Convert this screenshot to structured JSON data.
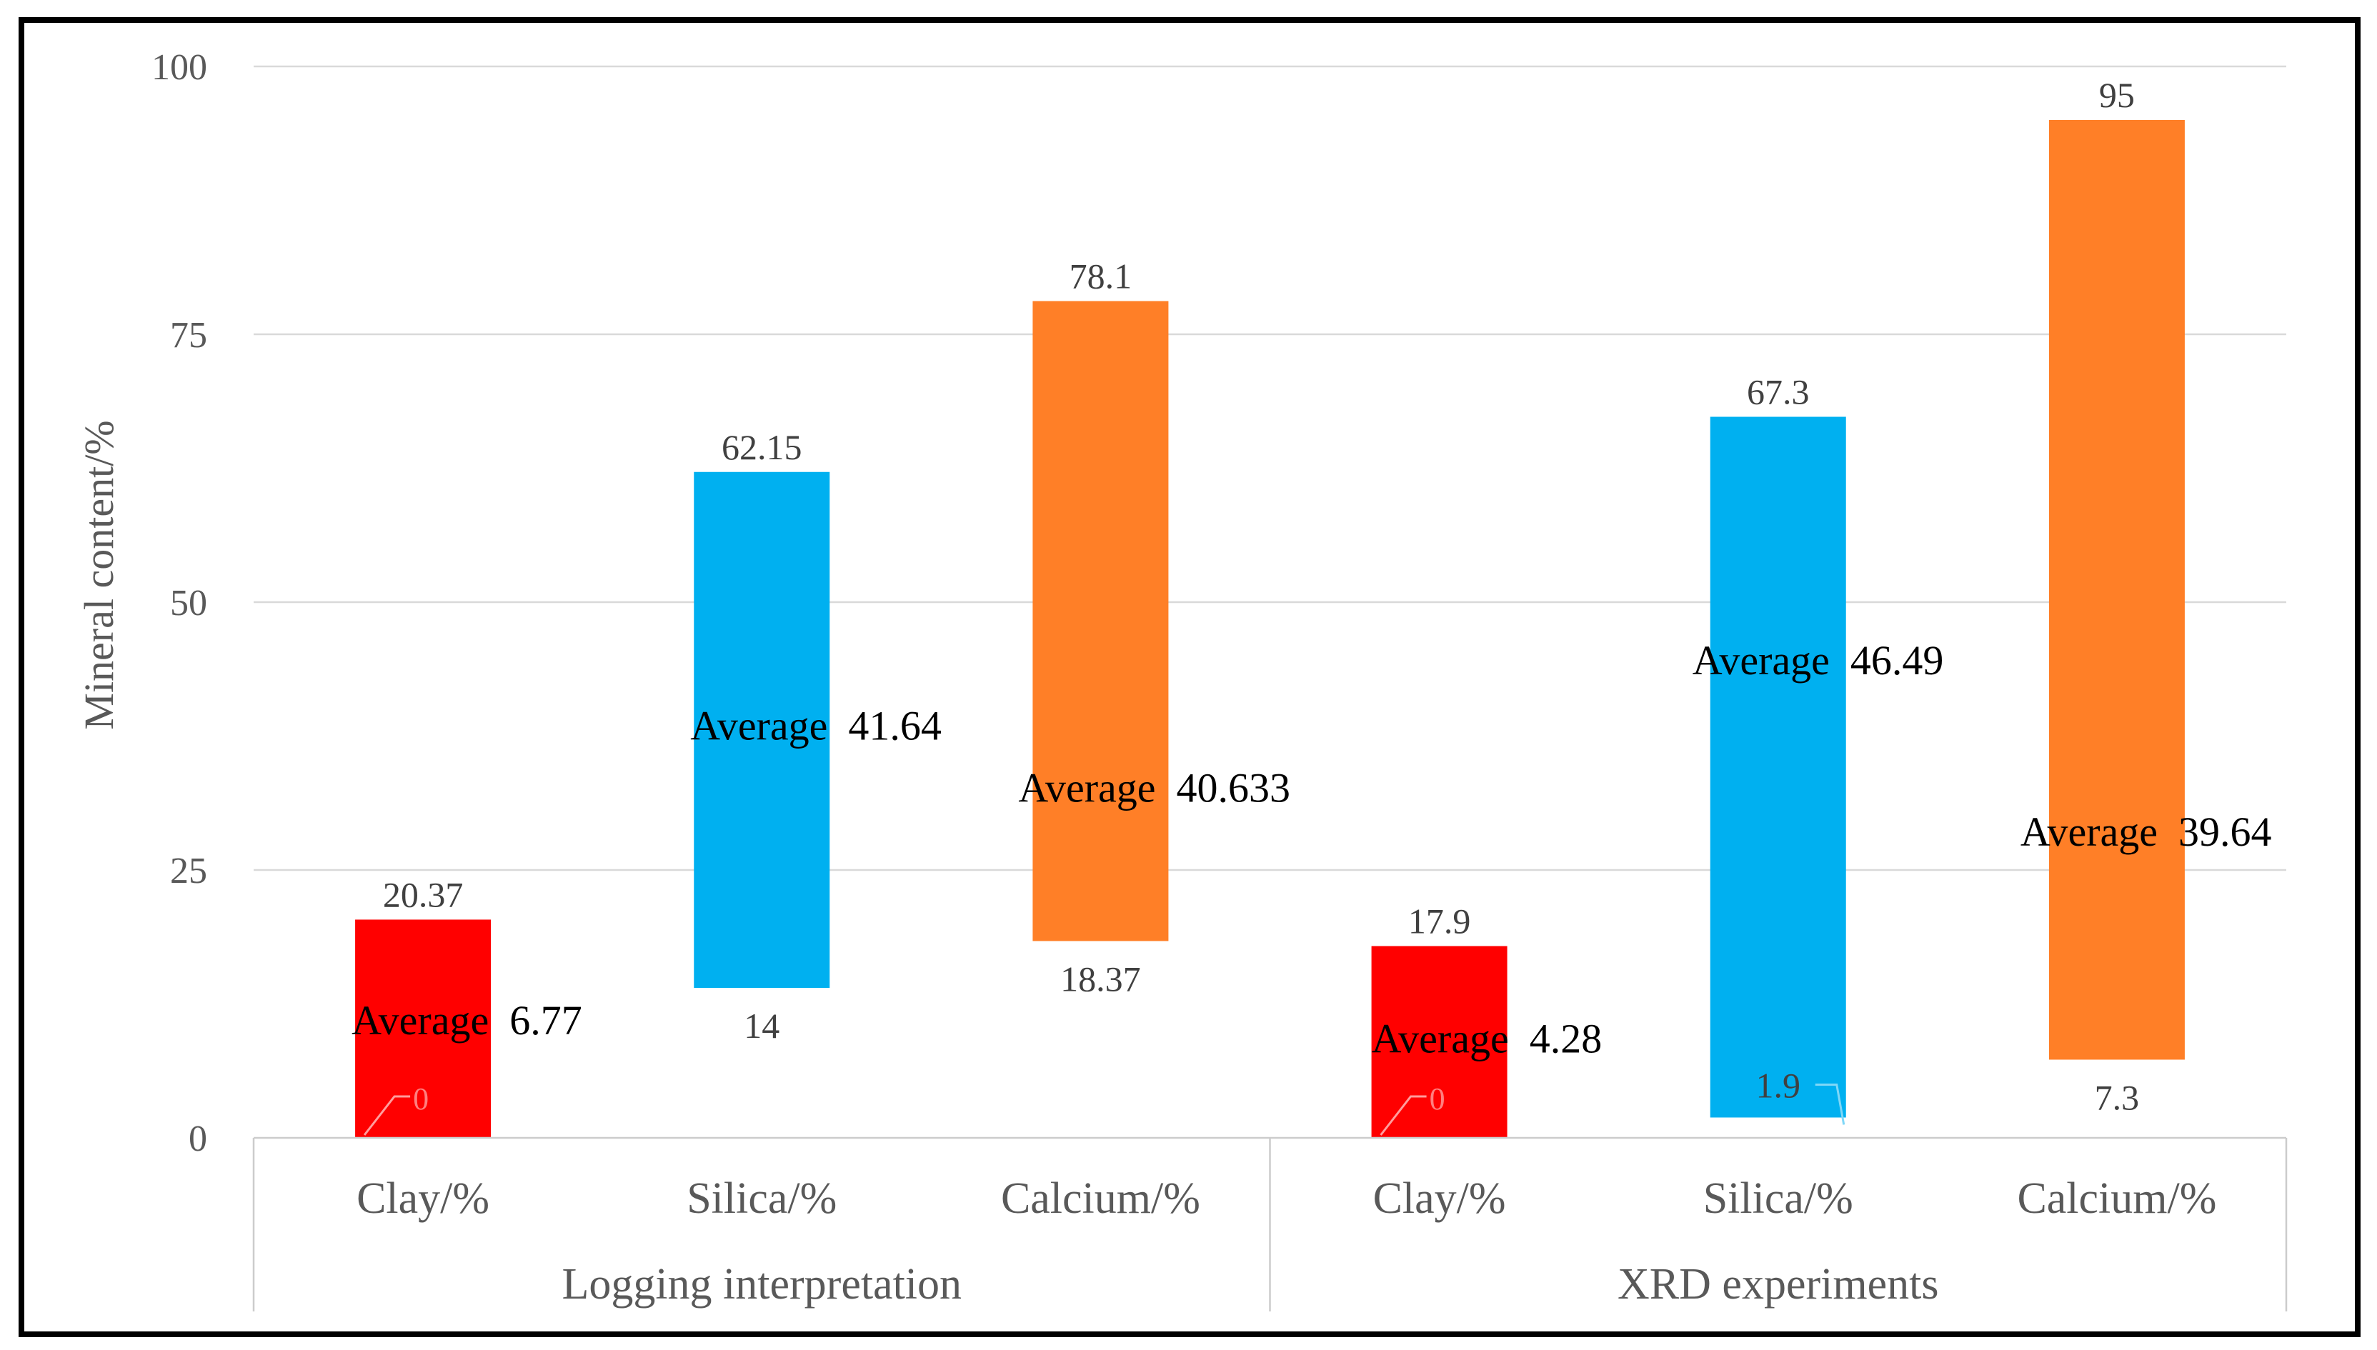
{
  "chart_data": {
    "type": "bar",
    "subtype": "floating-range",
    "title": "",
    "ylabel": "Mineral content/%",
    "xlabel": "",
    "ylim": [
      0,
      100
    ],
    "yticks": [
      "0",
      "25",
      "50",
      "75",
      "100"
    ],
    "grid": true,
    "groups": [
      {
        "name": "Logging interpretation",
        "bars": [
          {
            "category": "Clay/%",
            "min": 0,
            "max": 20.37,
            "min_label": "0",
            "max_label": "20.37",
            "avg_label": "Average  6.77",
            "color": "#ff0000"
          },
          {
            "category": "Silica/%",
            "min": 14,
            "max": 62.15,
            "min_label": "14",
            "max_label": "62.15",
            "avg_label": "Average  41.64",
            "color": "#00b0f0"
          },
          {
            "category": "Calcium/%",
            "min": 18.37,
            "max": 78.1,
            "min_label": "18.37",
            "max_label": "78.1",
            "avg_label": "Average  40.633",
            "color": "#ff7f27"
          }
        ]
      },
      {
        "name": "XRD experiments",
        "bars": [
          {
            "category": "Clay/%",
            "min": 0,
            "max": 17.9,
            "min_label": "0",
            "max_label": "17.9",
            "avg_label": "Average  4.28",
            "color": "#ff0000"
          },
          {
            "category": "Silica/%",
            "min": 1.9,
            "max": 67.3,
            "min_label": "1.9",
            "max_label": "67.3",
            "avg_label": "Average  46.49",
            "color": "#00b0f0"
          },
          {
            "category": "Calcium/%",
            "min": 7.3,
            "max": 95,
            "min_label": "7.3",
            "max_label": "95",
            "avg_label": "Average  39.64",
            "color": "#ff7f27"
          }
        ]
      }
    ]
  }
}
